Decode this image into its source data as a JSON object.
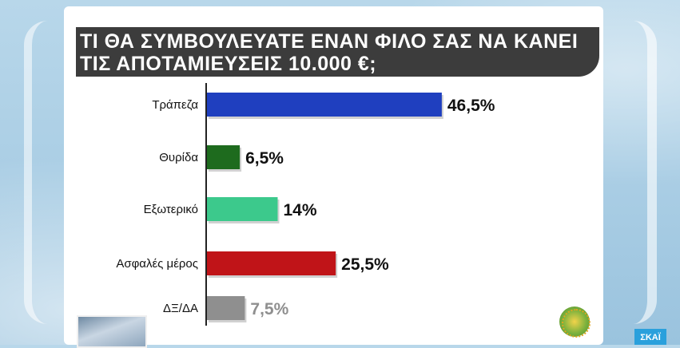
{
  "title": {
    "line1": "ΤΙ ΘΑ ΣΥΜΒΟΥΛΕΥΑΤΕ ΕΝΑΝ ΦΙΛΟ ΣΑΣ ΝΑ ΚΑΝΕΙ",
    "line2": "ΤΙΣ ΑΠΟΤΑΜΙΕΥΣΕΙΣ 10.000 €;"
  },
  "chart_data": {
    "type": "bar",
    "orientation": "horizontal",
    "title": "ΤΙ ΘΑ ΣΥΜΒΟΥΛΕΥΑΤΕ ΕΝΑΝ ΦΙΛΟ ΣΑΣ ΝΑ ΚΑΝΕΙ ΤΙΣ ΑΠΟΤΑΜΙΕΥΣΕΙΣ 10.000 €;",
    "categories": [
      "Τράπεζα",
      "Θυρίδα",
      "Εξωτερικό",
      "Ασφαλές μέρος",
      "ΔΞ/ΔΑ"
    ],
    "values": [
      46.5,
      6.5,
      14,
      25.5,
      7.5
    ],
    "value_labels": [
      "46,5%",
      "6,5%",
      "14%",
      "25,5%",
      "7,5%"
    ],
    "colors": [
      "#1f3fbf",
      "#1e6b1e",
      "#3cc98c",
      "#c01418",
      "#8f8f8f"
    ],
    "value_label_colors": [
      "#111111",
      "#111111",
      "#111111",
      "#111111",
      "#8f8f8f"
    ],
    "xlim": [
      0,
      50
    ],
    "grid": false,
    "legend": "none"
  },
  "branding": {
    "channel": "ΣΚΑΪ"
  }
}
